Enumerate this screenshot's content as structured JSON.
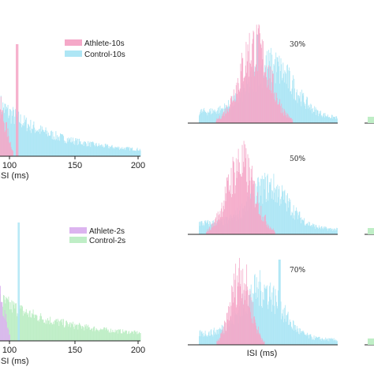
{
  "chart_data": [
    {
      "type": "bar",
      "panel": "top-left",
      "xlabel": "ISI (ms)",
      "xticks": [
        100,
        150,
        200
      ],
      "xlim": [
        70,
        200
      ],
      "legend": {
        "placement": "top-right"
      },
      "series": [
        {
          "name": "Athlete-10s",
          "color": "#f5a8c8"
        },
        {
          "name": "Control-10s",
          "color": "#aee6f5"
        }
      ],
      "annotations": []
    },
    {
      "type": "bar",
      "panel": "bottom-left",
      "xlabel": "ISI (ms)",
      "xticks": [
        100,
        150,
        200
      ],
      "xlim": [
        70,
        200
      ],
      "legend": {
        "placement": "top-right"
      },
      "series": [
        {
          "name": "Athlete-2s",
          "color": "#dcb4ef"
        },
        {
          "name": "Control-2s",
          "color": "#bfeec6"
        }
      ],
      "annotations": []
    },
    {
      "type": "bar",
      "panel": "middle-top",
      "annotation": "30%",
      "series": [
        {
          "name": "",
          "color": "#f5a8c8"
        },
        {
          "name": "",
          "color": "#aee6f5"
        }
      ]
    },
    {
      "type": "bar",
      "panel": "middle-center",
      "annotation": "50%",
      "series": [
        {
          "name": "",
          "color": "#f5a8c8"
        },
        {
          "name": "",
          "color": "#aee6f5"
        }
      ]
    },
    {
      "type": "bar",
      "panel": "middle-bottom",
      "annotation": "70%",
      "xlabel": "ISI (ms)",
      "series": [
        {
          "name": "",
          "color": "#f5a8c8"
        },
        {
          "name": "",
          "color": "#aee6f5"
        }
      ]
    }
  ]
}
